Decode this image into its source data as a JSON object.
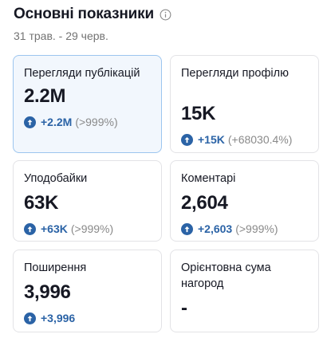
{
  "header": {
    "title": "Основні показники",
    "date_range": "31 трав. - 29 черв."
  },
  "icons": {
    "info": "info-circle-icon",
    "up": "arrow-up-circle-icon"
  },
  "colors": {
    "accent": "#2b63a6",
    "selected_bg": "#f2f7fd",
    "selected_border": "#9cc5ef"
  },
  "metrics": [
    {
      "label": "Перегляди публікацій",
      "value": "2.2M",
      "change": "+2.2M",
      "change_pct": "(>999%)",
      "selected": true
    },
    {
      "label": "Перегляди профілю",
      "value": "15K",
      "change": "+15K",
      "change_pct": "(+68030.4%)"
    },
    {
      "label": "Уподобайки",
      "value": "63K",
      "change": "+63K",
      "change_pct": "(>999%)"
    },
    {
      "label": "Коментарі",
      "value": "2,604",
      "change": "+2,603",
      "change_pct": "(>999%)"
    },
    {
      "label": "Поширення",
      "value": "3,996",
      "change": "+3,996",
      "change_pct": ""
    },
    {
      "label": "Орієнтовна сума нагород",
      "value": "-"
    }
  ]
}
